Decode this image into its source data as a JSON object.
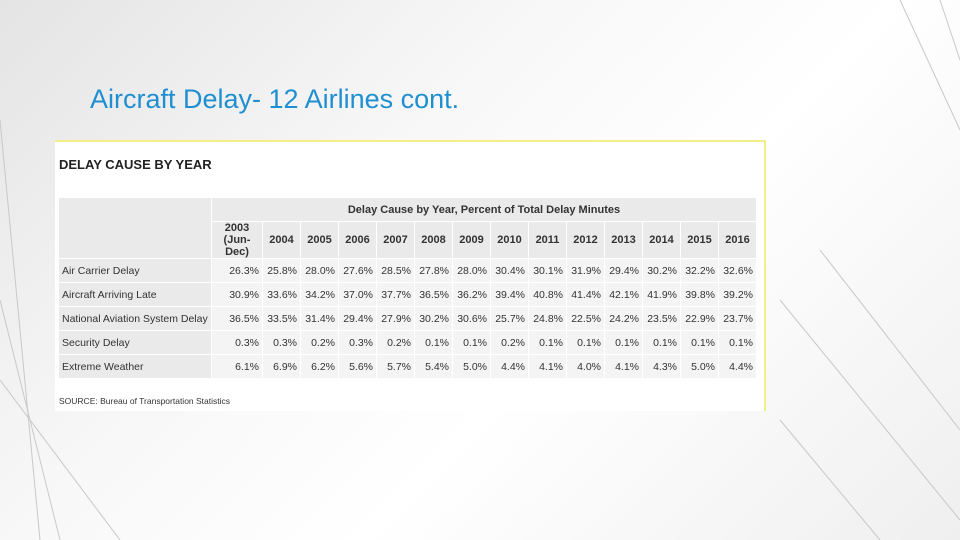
{
  "slide": {
    "title": "Aircraft Delay- 12 Airlines cont."
  },
  "table": {
    "heading": "DELAY CAUSE BY YEAR",
    "caption": "Delay Cause by Year, Percent of Total Delay Minutes",
    "columns": [
      "2003 (Jun-Dec)",
      "2004",
      "2005",
      "2006",
      "2007",
      "2008",
      "2009",
      "2010",
      "2011",
      "2012",
      "2013",
      "2014",
      "2015",
      "2016"
    ],
    "rows": [
      {
        "label": "Air Carrier Delay",
        "values": [
          "26.3%",
          "25.8%",
          "28.0%",
          "27.6%",
          "28.5%",
          "27.8%",
          "28.0%",
          "30.4%",
          "30.1%",
          "31.9%",
          "29.4%",
          "30.2%",
          "32.2%",
          "32.6%"
        ]
      },
      {
        "label": "Aircraft Arriving Late",
        "values": [
          "30.9%",
          "33.6%",
          "34.2%",
          "37.0%",
          "37.7%",
          "36.5%",
          "36.2%",
          "39.4%",
          "40.8%",
          "41.4%",
          "42.1%",
          "41.9%",
          "39.8%",
          "39.2%"
        ]
      },
      {
        "label": "National Aviation System Delay",
        "values": [
          "36.5%",
          "33.5%",
          "31.4%",
          "29.4%",
          "27.9%",
          "30.2%",
          "30.6%",
          "25.7%",
          "24.8%",
          "22.5%",
          "24.2%",
          "23.5%",
          "22.9%",
          "23.7%"
        ]
      },
      {
        "label": "Security Delay",
        "values": [
          "0.3%",
          "0.3%",
          "0.2%",
          "0.3%",
          "0.2%",
          "0.1%",
          "0.1%",
          "0.2%",
          "0.1%",
          "0.1%",
          "0.1%",
          "0.1%",
          "0.1%",
          "0.1%"
        ]
      },
      {
        "label": "Extreme Weather",
        "values": [
          "6.1%",
          "6.9%",
          "6.2%",
          "5.6%",
          "5.7%",
          "5.4%",
          "5.0%",
          "4.4%",
          "4.1%",
          "4.0%",
          "4.1%",
          "4.3%",
          "5.0%",
          "4.4%"
        ]
      }
    ],
    "source": "SOURCE: Bureau of Transportation Statistics"
  }
}
